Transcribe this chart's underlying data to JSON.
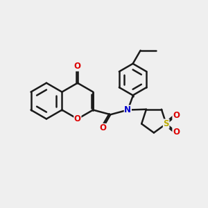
{
  "background_color": "#efefef",
  "bond_color": "#1a1a1a",
  "bond_width": 1.8,
  "atom_colors": {
    "O": "#dd0000",
    "N": "#0000cc",
    "S": "#bbaa00",
    "C": "#1a1a1a"
  },
  "font_size_atom": 8.5,
  "figsize": [
    3.0,
    3.0
  ],
  "dpi": 100,
  "xlim": [
    0,
    10
  ],
  "ylim": [
    0,
    10
  ]
}
